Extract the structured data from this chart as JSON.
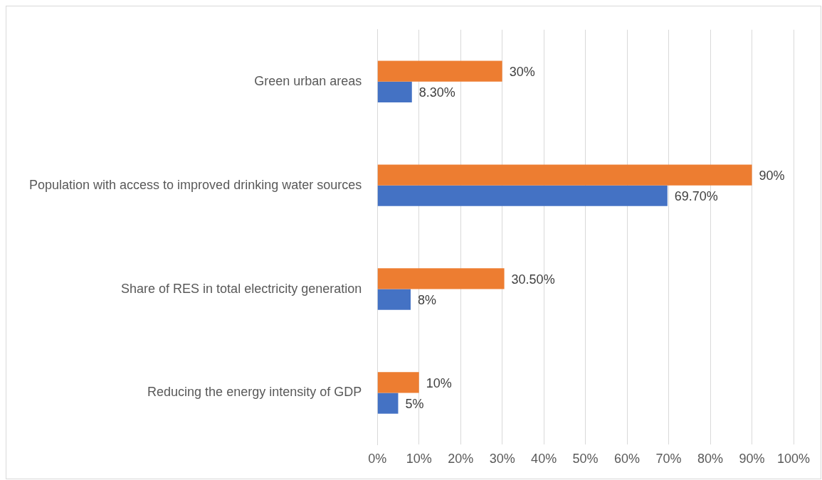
{
  "chart_data": {
    "type": "bar",
    "orientation": "horizontal",
    "categories": [
      "Green urban areas",
      "Population with access to improved drinking water sources",
      "Share of RES in total electricity generation",
      "Reducing the energy intensity of GDP"
    ],
    "series": [
      {
        "color": "#ed7d31",
        "values": [
          30,
          90,
          30.5,
          10
        ],
        "value_labels": [
          "30%",
          "90%",
          "30.50%",
          "10%"
        ]
      },
      {
        "color": "#4472c4",
        "values": [
          8.3,
          69.7,
          8,
          5
        ],
        "value_labels": [
          "8.30%",
          "69.70%",
          "8%",
          "5%"
        ]
      }
    ],
    "xlim": [
      0,
      100
    ],
    "xticks": [
      {
        "value": 0,
        "label": "0%"
      },
      {
        "value": 10,
        "label": "10%"
      },
      {
        "value": 20,
        "label": "20%"
      },
      {
        "value": 30,
        "label": "30%"
      },
      {
        "value": 40,
        "label": "40%"
      },
      {
        "value": 50,
        "label": "50%"
      },
      {
        "value": 60,
        "label": "60%"
      },
      {
        "value": 70,
        "label": "70%"
      },
      {
        "value": 80,
        "label": "80%"
      },
      {
        "value": 90,
        "label": "90%"
      },
      {
        "value": 100,
        "label": "100%"
      }
    ],
    "grid": "x",
    "legend": false
  }
}
